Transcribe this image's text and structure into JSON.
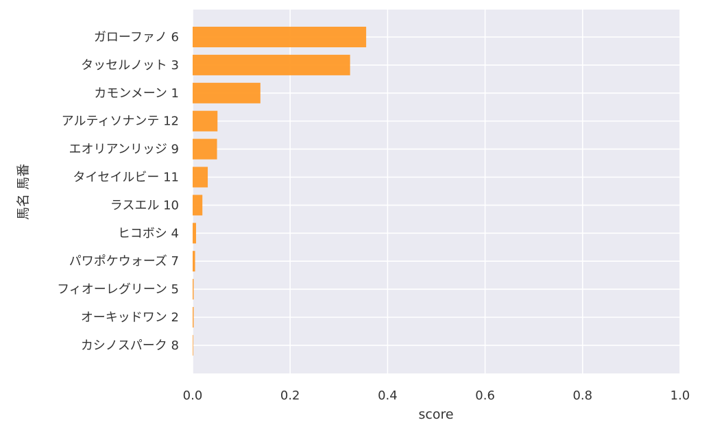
{
  "chart_data": {
    "type": "bar",
    "orientation": "horizontal",
    "categories": [
      "ガローファノ 6",
      "タッセルノット 3",
      "カモンメーン 1",
      "アルティソナンテ 12",
      "エオリアンリッジ 9",
      "タイセイルビー 11",
      "ラスエル 10",
      "ヒコボシ 4",
      "パワポケウォーズ 7",
      "フィオーレグリーン 5",
      "オーキッドワン 2",
      "カシノスパーク 8"
    ],
    "values": [
      0.356,
      0.323,
      0.139,
      0.051,
      0.05,
      0.031,
      0.02,
      0.007,
      0.005,
      0.002,
      0.002,
      0.001
    ],
    "xlabel": "score",
    "ylabel": "馬名 馬番",
    "xlim": [
      0,
      1.0
    ],
    "x_ticks": [
      "0.0",
      "0.2",
      "0.4",
      "0.6",
      "0.8",
      "1.0"
    ],
    "grid": true,
    "colors": {
      "bar": "#ff9a28",
      "background": "#eaeaf2",
      "grid": "#ffffff",
      "text": "#333333"
    }
  }
}
